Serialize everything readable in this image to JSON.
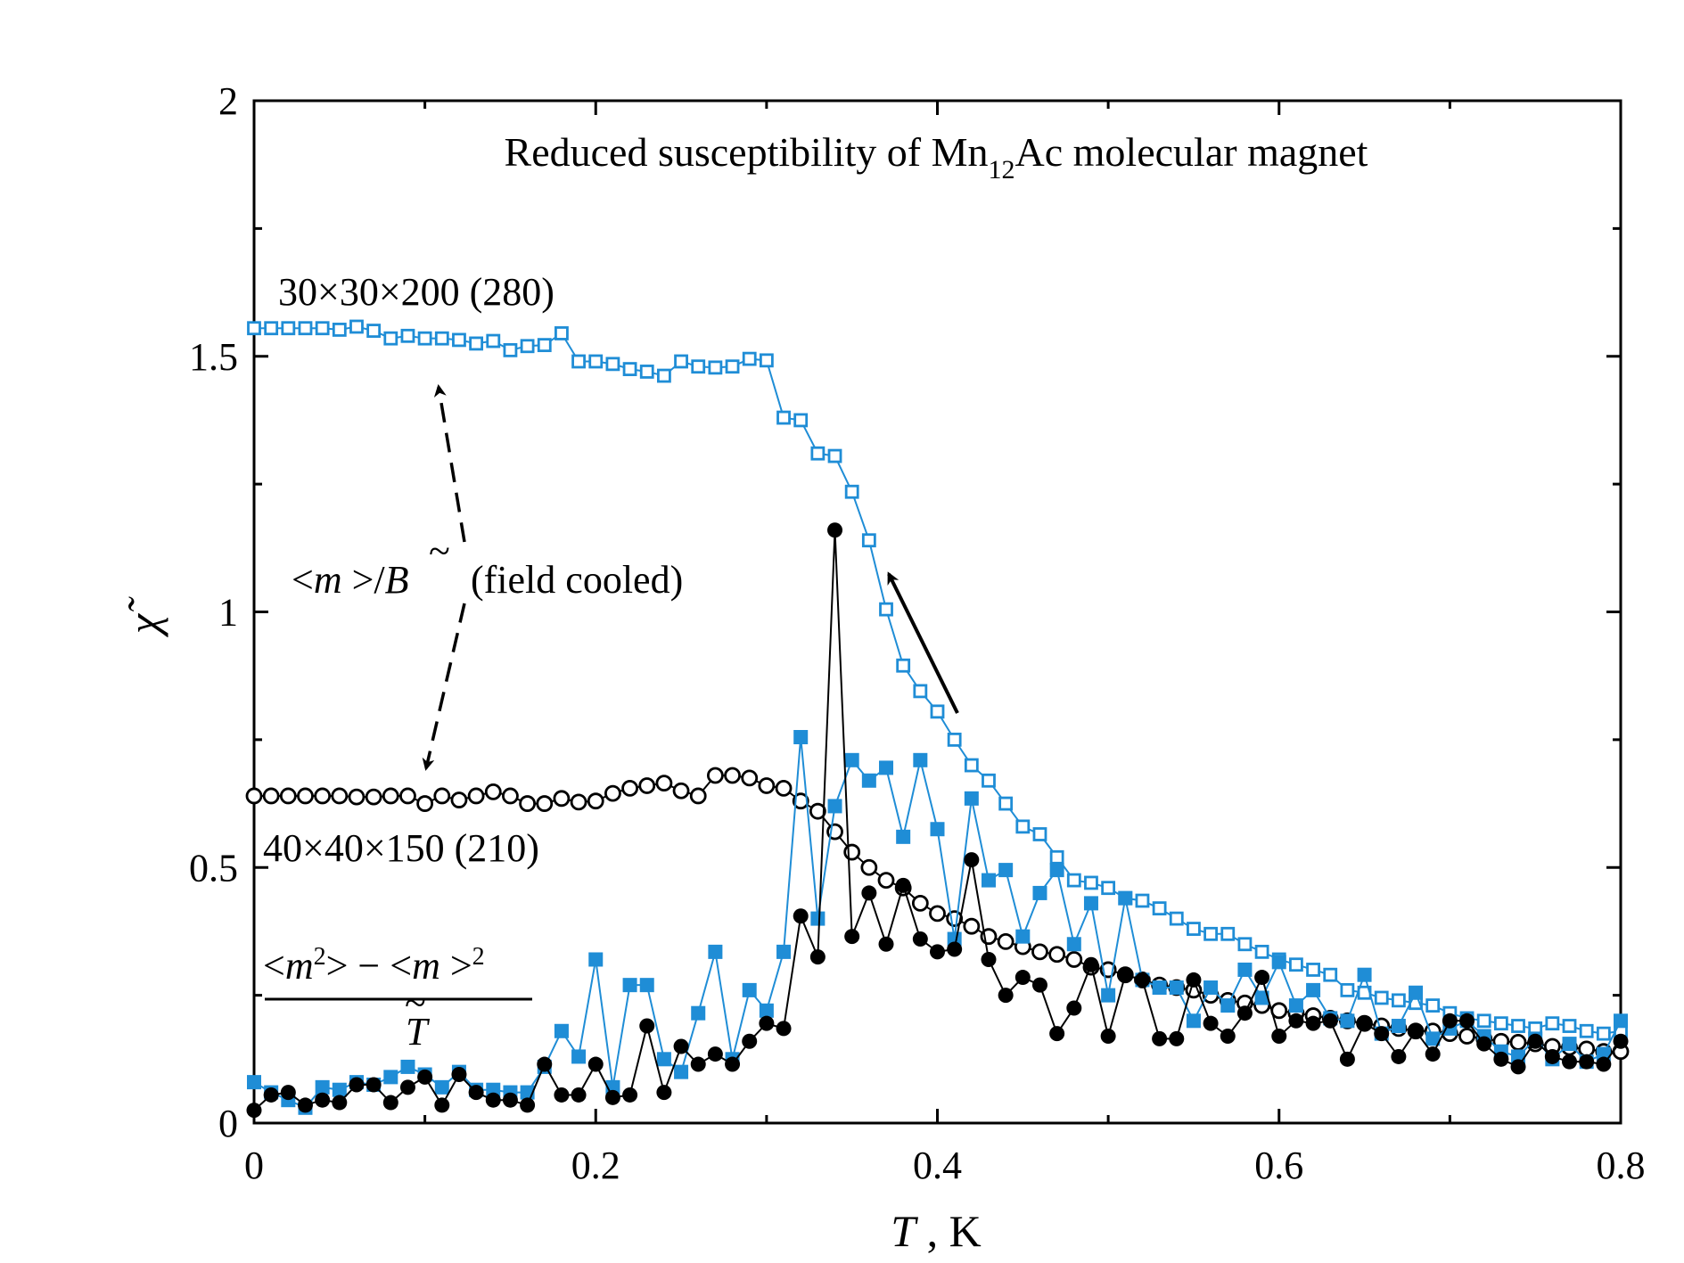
{
  "chart_data": {
    "type": "scatter",
    "title": "Reduced susceptibility of Mn12Ac molecular magnet",
    "title_parts": {
      "pre": "Reduced susceptibility of Mn",
      "sub": "12",
      "post": "Ac molecular magnet"
    },
    "xlabel": "T , K",
    "xlabel_parts": {
      "var": "T",
      "unit": " , K"
    },
    "ylabel": "χ̃",
    "xlim": [
      0,
      0.8
    ],
    "ylim": [
      0,
      2
    ],
    "xticks": [
      "0",
      "0.2",
      "0.4",
      "0.6",
      "0.8"
    ],
    "yticks": [
      "0",
      "0.5",
      "1",
      "1.5",
      "2"
    ],
    "grid": false,
    "colors": {
      "blue": "#1f8dd6",
      "black": "#000000"
    },
    "annotations": {
      "label_30": "30×30×200 (280)",
      "label_40": "40×40×150 (210)",
      "field_cooled": {
        "num_open": "<",
        "var_m": "m",
        "num_close": " >/",
        "var_B": "B",
        "tilde": "~",
        "note": "(field cooled)"
      },
      "fluct": {
        "lt1": "<",
        "m1": "m",
        "sup1": "2",
        "mid": ">  − <",
        "m2": "m",
        "gt": " >",
        "sup2": "2",
        "den_var": "T",
        "den_tilde": "~"
      }
    },
    "x": [
      0,
      0.01,
      0.02,
      0.03,
      0.04,
      0.05,
      0.06,
      0.07,
      0.08,
      0.09,
      0.1,
      0.11,
      0.12,
      0.13,
      0.14,
      0.15,
      0.16,
      0.17,
      0.18,
      0.19,
      0.2,
      0.21,
      0.22,
      0.23,
      0.24,
      0.25,
      0.26,
      0.27,
      0.28,
      0.29,
      0.3,
      0.31,
      0.32,
      0.33,
      0.34,
      0.35,
      0.36,
      0.37,
      0.38,
      0.39,
      0.4,
      0.41,
      0.42,
      0.43,
      0.44,
      0.45,
      0.46,
      0.47,
      0.48,
      0.49,
      0.5,
      0.51,
      0.52,
      0.53,
      0.54,
      0.55,
      0.56,
      0.57,
      0.58,
      0.59,
      0.6,
      0.61,
      0.62,
      0.63,
      0.64,
      0.65,
      0.66,
      0.67,
      0.68,
      0.69,
      0.7,
      0.71,
      0.72,
      0.73,
      0.74,
      0.75,
      0.76,
      0.77,
      0.78,
      0.79,
      0.8
    ],
    "series": [
      {
        "marker": "open-square",
        "color": "#1f8dd6",
        "values": [
          1.555,
          1.555,
          1.555,
          1.555,
          1.555,
          1.552,
          1.558,
          1.55,
          1.535,
          1.54,
          1.535,
          1.535,
          1.532,
          1.525,
          1.53,
          1.512,
          1.52,
          1.522,
          1.545,
          1.49,
          1.49,
          1.485,
          1.475,
          1.47,
          1.462,
          1.49,
          1.48,
          1.478,
          1.48,
          1.495,
          1.492,
          1.38,
          1.375,
          1.31,
          1.305,
          1.235,
          1.14,
          1.005,
          0.895,
          0.845,
          0.805,
          0.75,
          0.7,
          0.67,
          0.625,
          0.58,
          0.565,
          0.52,
          0.475,
          0.47,
          0.46,
          0.44,
          0.435,
          0.42,
          0.4,
          0.38,
          0.37,
          0.37,
          0.35,
          0.335,
          0.32,
          0.31,
          0.3,
          0.29,
          0.26,
          0.255,
          0.245,
          0.24,
          0.235,
          0.23,
          0.215,
          0.205,
          0.2,
          0.195,
          0.19,
          0.185,
          0.195,
          0.19,
          0.18,
          0.175,
          0.18
        ]
      },
      {
        "marker": "open-circle",
        "color": "#000000",
        "values": [
          0.64,
          0.64,
          0.64,
          0.64,
          0.64,
          0.64,
          0.638,
          0.638,
          0.64,
          0.64,
          0.625,
          0.64,
          0.632,
          0.64,
          0.648,
          0.64,
          0.625,
          0.625,
          0.635,
          0.628,
          0.63,
          0.645,
          0.655,
          0.66,
          0.665,
          0.65,
          0.64,
          0.68,
          0.68,
          0.675,
          0.66,
          0.655,
          0.63,
          0.61,
          0.57,
          0.53,
          0.5,
          0.475,
          0.46,
          0.43,
          0.41,
          0.4,
          0.385,
          0.365,
          0.355,
          0.345,
          0.335,
          0.33,
          0.32,
          0.305,
          0.3,
          0.29,
          0.28,
          0.27,
          0.265,
          0.26,
          0.25,
          0.24,
          0.235,
          0.23,
          0.22,
          0.215,
          0.21,
          0.205,
          0.2,
          0.195,
          0.19,
          0.185,
          0.18,
          0.18,
          0.175,
          0.17,
          0.165,
          0.16,
          0.158,
          0.155,
          0.15,
          0.148,
          0.145,
          0.14,
          0.14
        ]
      },
      {
        "marker": "filled-square",
        "color": "#1f8dd6",
        "values": [
          0.08,
          0.06,
          0.045,
          0.03,
          0.07,
          0.065,
          0.08,
          0.075,
          0.09,
          0.11,
          0.095,
          0.07,
          0.1,
          0.065,
          0.065,
          0.06,
          0.06,
          0.11,
          0.18,
          0.13,
          0.32,
          0.07,
          0.27,
          0.27,
          0.125,
          0.1,
          0.215,
          0.335,
          0.125,
          0.26,
          0.22,
          0.335,
          0.755,
          0.4,
          0.62,
          0.71,
          0.67,
          0.695,
          0.56,
          0.71,
          0.575,
          0.36,
          0.635,
          0.475,
          0.495,
          0.365,
          0.45,
          0.495,
          0.35,
          0.43,
          0.25,
          0.44,
          0.28,
          0.265,
          0.265,
          0.2,
          0.265,
          0.23,
          0.3,
          0.245,
          0.315,
          0.23,
          0.26,
          0.205,
          0.2,
          0.29,
          0.175,
          0.19,
          0.255,
          0.165,
          0.185,
          0.2,
          0.17,
          0.14,
          0.13,
          0.165,
          0.125,
          0.155,
          0.12,
          0.135,
          0.2
        ]
      },
      {
        "marker": "filled-circle",
        "color": "#000000",
        "values": [
          0.025,
          0.055,
          0.06,
          0.035,
          0.045,
          0.04,
          0.075,
          0.075,
          0.04,
          0.07,
          0.09,
          0.035,
          0.095,
          0.06,
          0.045,
          0.045,
          0.035,
          0.115,
          0.055,
          0.055,
          0.115,
          0.05,
          0.055,
          0.19,
          0.06,
          0.15,
          0.115,
          0.135,
          0.115,
          0.16,
          0.195,
          0.185,
          0.405,
          0.325,
          1.16,
          0.365,
          0.45,
          0.35,
          0.465,
          0.36,
          0.335,
          0.34,
          0.515,
          0.32,
          0.25,
          0.285,
          0.27,
          0.175,
          0.225,
          0.31,
          0.17,
          0.29,
          0.28,
          0.165,
          0.165,
          0.28,
          0.195,
          0.17,
          0.215,
          0.285,
          0.17,
          0.2,
          0.195,
          0.2,
          0.125,
          0.195,
          0.175,
          0.13,
          0.18,
          0.135,
          0.2,
          0.2,
          0.155,
          0.125,
          0.11,
          0.16,
          0.13,
          0.12,
          0.12,
          0.115,
          0.16
        ]
      }
    ]
  }
}
